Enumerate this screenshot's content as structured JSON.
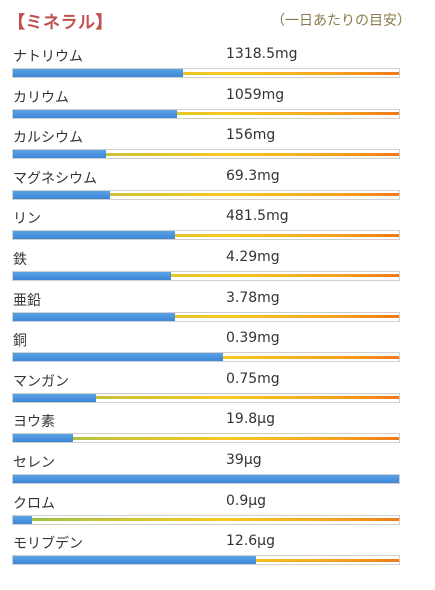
{
  "header": {
    "title": "【ミネラル】",
    "subtitle": "（一日あたりの目安）"
  },
  "minerals": [
    {
      "name": "ナトリウム",
      "amount": "1318.5mg",
      "level": 0.44
    },
    {
      "name": "カリウム",
      "amount": "1059mg",
      "level": 0.425
    },
    {
      "name": "カルシウム",
      "amount": "156mg",
      "level": 0.24
    },
    {
      "name": "マグネシウム",
      "amount": "69.3mg",
      "level": 0.25
    },
    {
      "name": "リン",
      "amount": "481.5mg",
      "level": 0.42
    },
    {
      "name": "鉄",
      "amount": "4.29mg",
      "level": 0.41
    },
    {
      "name": "亜鉛",
      "amount": "3.78mg",
      "level": 0.42
    },
    {
      "name": "銅",
      "amount": "0.39mg",
      "level": 0.545
    },
    {
      "name": "マンガン",
      "amount": "0.75mg",
      "level": 0.215
    },
    {
      "name": "ヨウ素",
      "amount": "19.8μg",
      "level": 0.155
    },
    {
      "name": "セレン",
      "amount": "39μg",
      "level": 1.0
    },
    {
      "name": "クロム",
      "amount": "0.9μg",
      "level": 0.05
    },
    {
      "name": "モリブデン",
      "amount": "12.6μg",
      "level": 0.63
    }
  ],
  "colors": {
    "title": "#c0504d",
    "subtitle": "#8c7a4a",
    "bar_fill": "#4a90dd",
    "gauge_start": "#8fc24a",
    "gauge_end": "#f07a18"
  }
}
